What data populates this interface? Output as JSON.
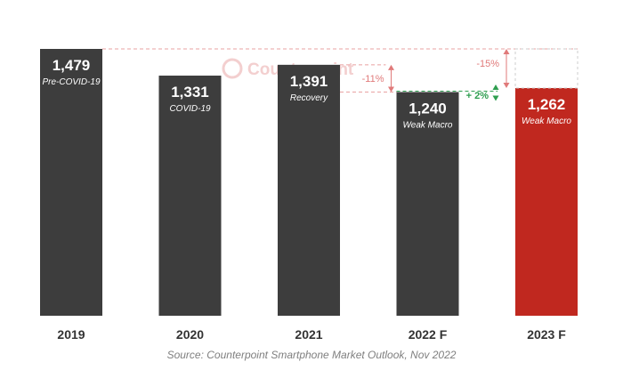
{
  "chart_data": {
    "type": "bar",
    "categories": [
      "2019",
      "2020",
      "2021",
      "2022 F",
      "2023 F"
    ],
    "values": [
      1479,
      1331,
      1391,
      1240,
      1262
    ],
    "value_labels": [
      "1,479",
      "1,331",
      "1,391",
      "1,240",
      "1,262"
    ],
    "bar_labels": [
      "Pre-COVID-19",
      "COVID-19",
      "Recovery",
      "Weak Macro",
      "Weak Macro"
    ],
    "colors": [
      "#3d3d3d",
      "#3d3d3d",
      "#3d3d3d",
      "#3d3d3d",
      "#c0281f"
    ],
    "annotations": [
      {
        "text": "-15%",
        "from": "2019",
        "to": "2023 F",
        "color": "#e07a7a"
      },
      {
        "text": "-11%",
        "from": "2021",
        "to": "2022 F",
        "color": "#e07a7a"
      },
      {
        "text": "+ 2%",
        "from": "2022 F",
        "to": "2023 F",
        "color": "#2e9e4f"
      }
    ],
    "ylim": [
      0,
      1600
    ],
    "grid": false,
    "legend": "none"
  },
  "watermark": {
    "text": "Counterpoint"
  },
  "source": "Source: Counterpoint Smartphone Market Outlook, Nov 2022"
}
